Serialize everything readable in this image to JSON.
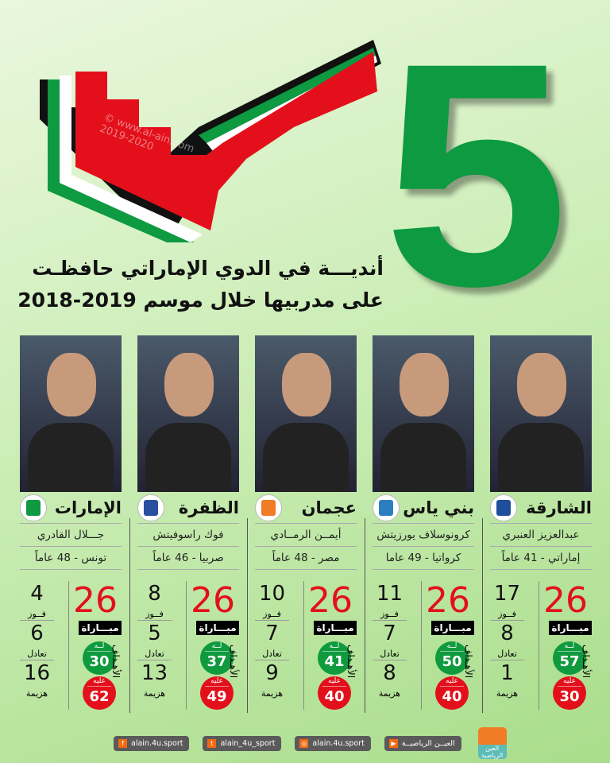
{
  "headline": {
    "number": "5",
    "line1": "أنديـــة في الدوي الإماراتي حافظـت",
    "line2": "على مدربيها خلال موسم 2019-2018"
  },
  "watermark": {
    "site": "www.al-ain.com",
    "years": "2019-2020"
  },
  "labels": {
    "matches": "مبـــاراة",
    "wins": "فــوز",
    "draws": "تعادل",
    "losses": "هزيمة",
    "goals": "الأهـداف",
    "for": "لــه",
    "against": "عليه"
  },
  "clubs": [
    {
      "club": "الشارقة",
      "coach": "عبدالعزيز العنبري",
      "origin": "إماراتي - 41 عاماً",
      "matches": "26",
      "wins": "17",
      "draws": "8",
      "losses": "1",
      "goals_for": "57",
      "goals_against": "30",
      "logo_color": "#1f4f9a"
    },
    {
      "club": "بني ياس",
      "coach": "كرونوسلاف يورزيتش",
      "origin": "كرواتيا - 49 عاما",
      "matches": "26",
      "wins": "11",
      "draws": "7",
      "losses": "8",
      "goals_for": "50",
      "goals_against": "40",
      "logo_color": "#2b7fc1"
    },
    {
      "club": "عجمان",
      "coach": "أيمــن الرمــادي",
      "origin": "مصر - 48 عاماً",
      "matches": "26",
      "wins": "10",
      "draws": "7",
      "losses": "9",
      "goals_for": "41",
      "goals_against": "40",
      "logo_color": "#f07c25"
    },
    {
      "club": "الظفرة",
      "coach": "فوك راسوفيتش",
      "origin": "صربيا - 46 عاماً",
      "matches": "26",
      "wins": "8",
      "draws": "5",
      "losses": "13",
      "goals_for": "37",
      "goals_against": "49",
      "logo_color": "#2a4fa0"
    },
    {
      "club": "الإمارات",
      "coach": "جـــلال القادري",
      "origin": "تونس - 48 عاماً",
      "matches": "26",
      "wins": "4",
      "draws": "6",
      "losses": "16",
      "goals_for": "30",
      "goals_against": "62",
      "logo_color": "#0d9a41"
    }
  ],
  "footer": {
    "youtube": "العيــن الرياضيــة",
    "instagram": "alain.4u.sport",
    "twitter": "alain_4u_sport",
    "facebook": "alain.4u.sport",
    "brand": "العين الرياضية"
  },
  "colors": {
    "green": "#0d9a41",
    "red": "#e3101b",
    "flag_red": "#e3101b",
    "black": "#111111"
  }
}
